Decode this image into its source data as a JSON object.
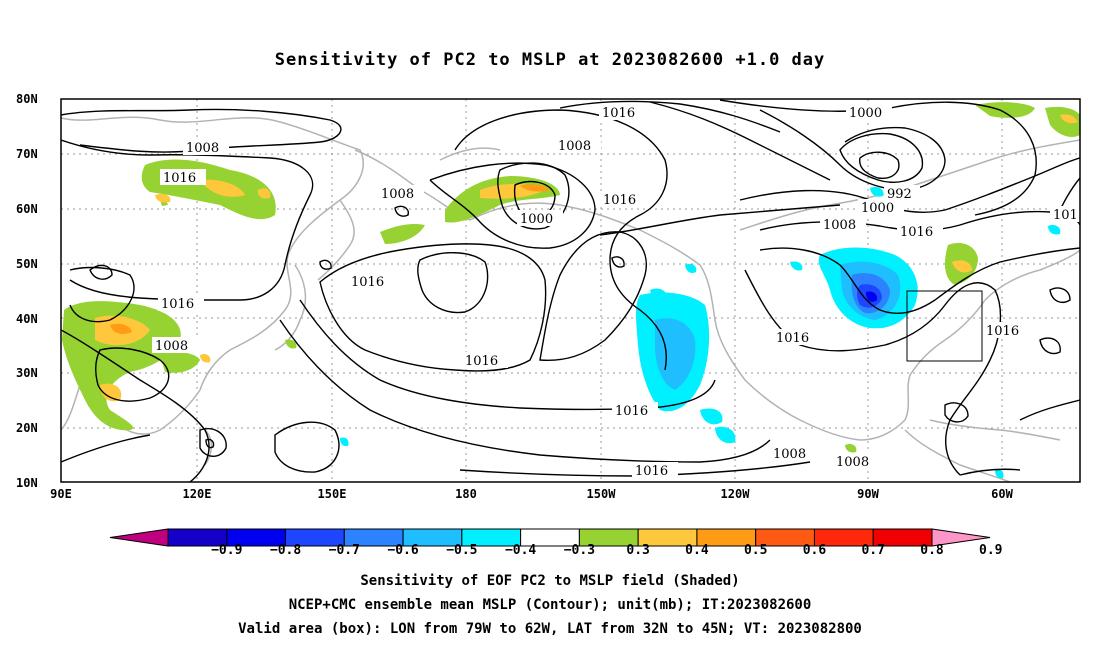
{
  "title": "Sensitivity of PC2 to MSLP at 2023082600 +1.0 day",
  "map": {
    "lat_labels": [
      "80N",
      "70N",
      "60N",
      "50N",
      "40N",
      "30N",
      "20N",
      "10N"
    ],
    "lon_labels": [
      "90E",
      "120E",
      "150E",
      "180",
      "150W",
      "120W",
      "90W",
      "60W"
    ],
    "contour_labels": [
      "1016",
      "1000",
      "1008",
      "1016",
      "1008",
      "1000",
      "1016",
      "992",
      "1000",
      "1008",
      "1016",
      "101",
      "1008",
      "1016",
      "1016",
      "1016",
      "1016",
      "1008",
      "1016",
      "1016",
      "1016",
      "1008",
      "1008",
      "1008"
    ],
    "box": {
      "lon_from": "79W",
      "lon_to": "62W",
      "lat_from": "32N",
      "lat_to": "45N"
    }
  },
  "colorbar": {
    "labels": [
      "−0.9",
      "−0.8",
      "−0.7",
      "−0.6",
      "−0.5",
      "−0.4",
      "−0.3",
      "0.3",
      "0.4",
      "0.5",
      "0.6",
      "0.7",
      "0.8",
      "0.9"
    ],
    "colors": [
      "#c00080",
      "#1400c8",
      "#0000f0",
      "#1e46ff",
      "#2d82ff",
      "#1ebeff",
      "#00f0ff",
      "#ffffff",
      "#96d232",
      "#ffc83c",
      "#ff9b14",
      "#ff5a14",
      "#ff280a",
      "#f00000",
      "#ff96c8"
    ]
  },
  "captions": {
    "line1": "Sensitivity of EOF PC2 to MSLP field (Shaded)",
    "line2": "NCEP+CMC ensemble mean MSLP (Contour); unit(mb); IT:2023082600",
    "line3": "Valid area (box): LON from 79W to 62W, LAT from 32N to 45N; VT: 2023082800"
  }
}
